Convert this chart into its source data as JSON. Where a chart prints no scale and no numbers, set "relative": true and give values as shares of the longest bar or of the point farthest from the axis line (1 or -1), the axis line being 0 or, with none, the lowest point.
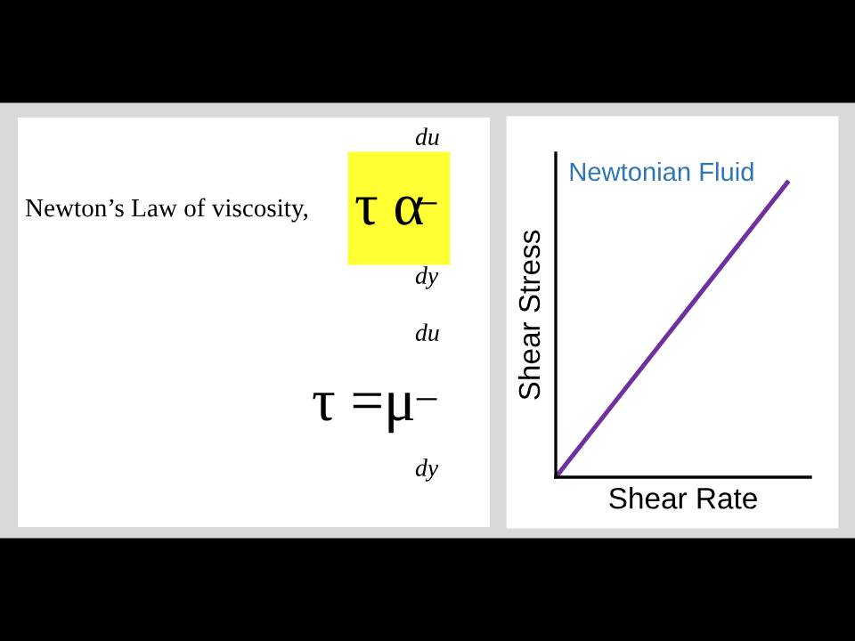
{
  "chart_data": [
    {
      "type": "other",
      "annotations": [
        "Newton’s Law of viscosity,",
        "τ α",
        "du",
        "–",
        "dy",
        "τ =μ",
        "du",
        "–",
        "dy"
      ]
    },
    {
      "type": "line",
      "title": "Newtonian Fluid",
      "xlabel": "Shear Rate",
      "ylabel": "Shear Stress",
      "relative": true,
      "categories": [
        null,
        null
      ],
      "series": [
        {
          "color": "#7030a0",
          "values": [
            0,
            1
          ]
        }
      ]
    }
  ]
}
